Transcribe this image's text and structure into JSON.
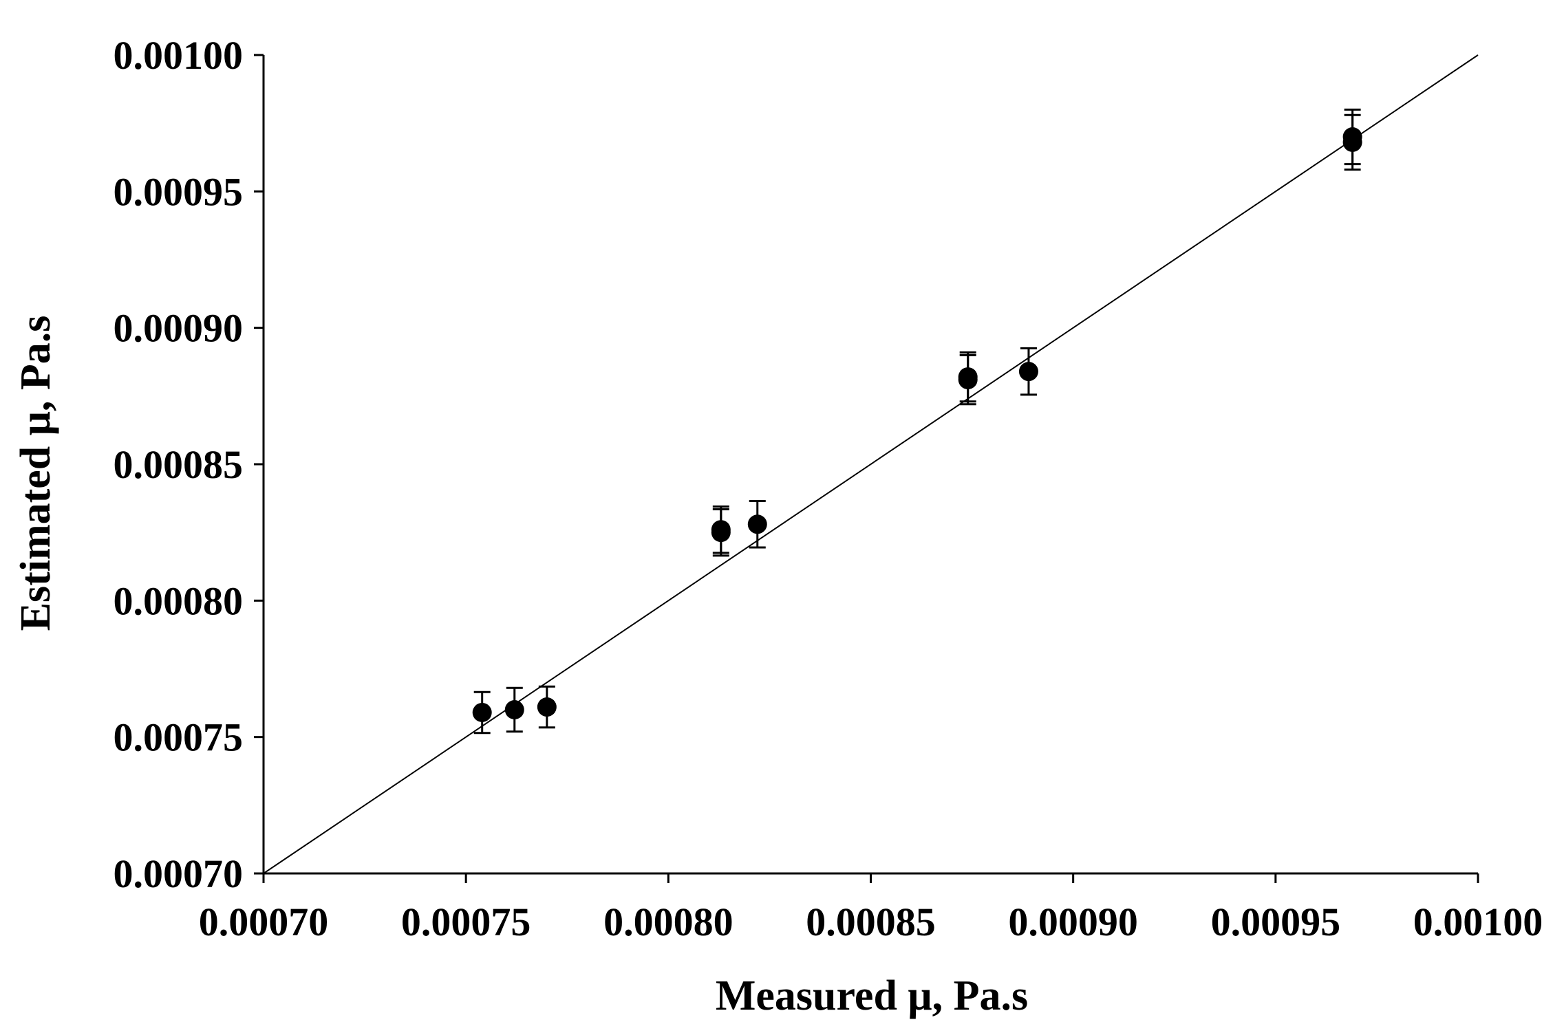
{
  "chart_data": {
    "type": "scatter",
    "title": "",
    "xlabel": "Measured μ, Pa.s",
    "ylabel": "Estimated μ, Pa.s",
    "xlim": [
      0.0007,
      0.001
    ],
    "ylim": [
      0.0007,
      0.001
    ],
    "x_ticks": [
      "0.00070",
      "0.00075",
      "0.00080",
      "0.00085",
      "0.00090",
      "0.00095",
      "0.00100"
    ],
    "y_ticks": [
      "0.00070",
      "0.00075",
      "0.00080",
      "0.00085",
      "0.00090",
      "0.00095",
      "0.00100"
    ],
    "grid": false,
    "legend": "none",
    "reference_line": {
      "type": "identity",
      "from": [
        0.0007,
        0.0007
      ],
      "to": [
        0.001,
        0.001
      ]
    },
    "points": [
      {
        "x": 0.000754,
        "y": 0.000759,
        "err": 7.5e-06
      },
      {
        "x": 0.000762,
        "y": 0.00076,
        "err": 8e-06
      },
      {
        "x": 0.00077,
        "y": 0.000761,
        "err": 7.5e-06
      },
      {
        "x": 0.000813,
        "y": 0.000826,
        "err": 8.5e-06
      },
      {
        "x": 0.000813,
        "y": 0.000825,
        "err": 8.5e-06
      },
      {
        "x": 0.000822,
        "y": 0.000828,
        "err": 8.5e-06
      },
      {
        "x": 0.000874,
        "y": 0.000882,
        "err": 9e-06
      },
      {
        "x": 0.000874,
        "y": 0.000881,
        "err": 9e-06
      },
      {
        "x": 0.000889,
        "y": 0.000884,
        "err": 8.5e-06
      },
      {
        "x": 0.000969,
        "y": 0.00097,
        "err": 1e-05
      },
      {
        "x": 0.000969,
        "y": 0.000968,
        "err": 1e-05
      }
    ],
    "colors": {
      "marker": "#000000",
      "line": "#000000",
      "axis": "#000000"
    }
  }
}
